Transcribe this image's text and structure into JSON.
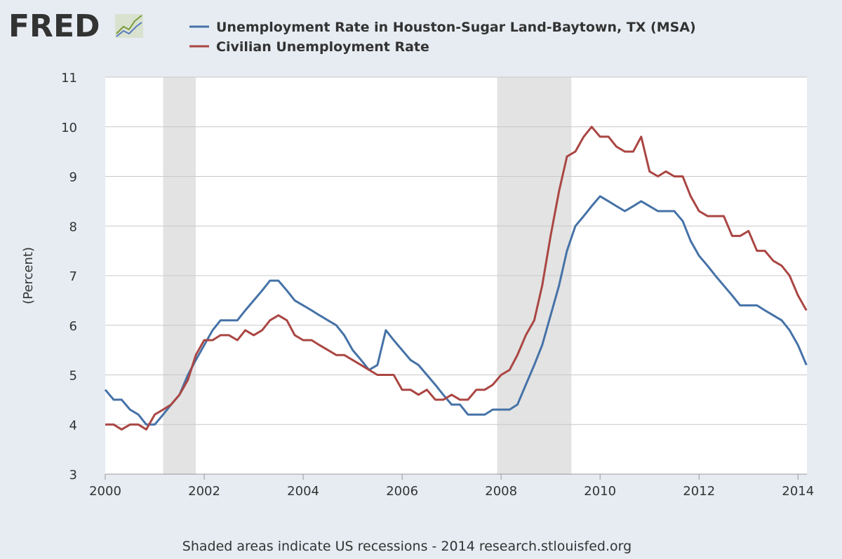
{
  "logo": "FRED",
  "chart_data": {
    "type": "line",
    "y_label": "(Percent)",
    "footer": "Shaded areas indicate US recessions - 2014 research.stlouisfed.org",
    "x": [
      2000,
      2000.17,
      2000.33,
      2000.5,
      2000.67,
      2000.83,
      2001,
      2001.17,
      2001.33,
      2001.5,
      2001.67,
      2001.83,
      2002,
      2002.17,
      2002.33,
      2002.5,
      2002.67,
      2002.83,
      2003,
      2003.17,
      2003.33,
      2003.5,
      2003.67,
      2003.83,
      2004,
      2004.17,
      2004.33,
      2004.5,
      2004.67,
      2004.83,
      2005,
      2005.17,
      2005.33,
      2005.5,
      2005.67,
      2005.83,
      2006,
      2006.17,
      2006.33,
      2006.5,
      2006.67,
      2006.83,
      2007,
      2007.17,
      2007.33,
      2007.5,
      2007.67,
      2007.83,
      2008,
      2008.17,
      2008.33,
      2008.5,
      2008.67,
      2008.83,
      2009,
      2009.17,
      2009.33,
      2009.5,
      2009.67,
      2009.83,
      2010,
      2010.17,
      2010.33,
      2010.5,
      2010.67,
      2010.83,
      2011,
      2011.17,
      2011.33,
      2011.5,
      2011.67,
      2011.83,
      2012,
      2012.17,
      2012.33,
      2012.5,
      2012.67,
      2012.83,
      2013,
      2013.17,
      2013.33,
      2013.5,
      2013.67,
      2013.83,
      2014,
      2014.17
    ],
    "series": [
      {
        "name": "Unemployment Rate in Houston-Sugar Land-Baytown, TX (MSA)",
        "color": "#4572a7",
        "values": [
          4.7,
          4.5,
          4.5,
          4.3,
          4.2,
          4.0,
          4.0,
          4.2,
          4.4,
          4.6,
          5.0,
          5.3,
          5.6,
          5.9,
          6.1,
          6.1,
          6.1,
          6.3,
          6.5,
          6.7,
          6.9,
          6.9,
          6.7,
          6.5,
          6.4,
          6.3,
          6.2,
          6.1,
          6.0,
          5.8,
          5.5,
          5.3,
          5.1,
          5.2,
          5.9,
          5.7,
          5.5,
          5.3,
          5.2,
          5.0,
          4.8,
          4.6,
          4.4,
          4.4,
          4.2,
          4.2,
          4.2,
          4.3,
          4.3,
          4.3,
          4.4,
          4.8,
          5.2,
          5.6,
          6.2,
          6.8,
          7.5,
          8.0,
          8.2,
          8.4,
          8.6,
          8.5,
          8.4,
          8.3,
          8.4,
          8.5,
          8.4,
          8.3,
          8.3,
          8.3,
          8.1,
          7.7,
          7.4,
          7.2,
          7.0,
          6.8,
          6.6,
          6.4,
          6.4,
          6.4,
          6.3,
          6.2,
          6.1,
          5.9,
          5.6,
          5.2
        ]
      },
      {
        "name": "Civilian Unemployment Rate",
        "color": "#aa4643",
        "values": [
          4.0,
          4.0,
          3.9,
          4.0,
          4.0,
          3.9,
          4.2,
          4.3,
          4.4,
          4.6,
          4.9,
          5.4,
          5.7,
          5.7,
          5.8,
          5.8,
          5.7,
          5.9,
          5.8,
          5.9,
          6.1,
          6.2,
          6.1,
          5.8,
          5.7,
          5.7,
          5.6,
          5.5,
          5.4,
          5.4,
          5.3,
          5.2,
          5.1,
          5.0,
          5.0,
          5.0,
          4.7,
          4.7,
          4.6,
          4.7,
          4.5,
          4.5,
          4.6,
          4.5,
          4.5,
          4.7,
          4.7,
          4.8,
          5.0,
          5.1,
          5.4,
          5.8,
          6.1,
          6.8,
          7.8,
          8.7,
          9.4,
          9.5,
          9.8,
          10.0,
          9.8,
          9.8,
          9.6,
          9.5,
          9.5,
          9.8,
          9.1,
          9.0,
          9.1,
          9.0,
          9.0,
          8.6,
          8.3,
          8.2,
          8.2,
          8.2,
          7.8,
          7.8,
          7.9,
          7.5,
          7.5,
          7.3,
          7.2,
          7.0,
          6.6,
          6.3
        ]
      }
    ],
    "recessions": [
      [
        2001.17,
        2001.83
      ],
      [
        2007.92,
        2009.42
      ]
    ],
    "xlim": [
      2000,
      2014.18
    ],
    "xticks": [
      2000,
      2002,
      2004,
      2006,
      2008,
      2010,
      2012,
      2014
    ],
    "ylim": [
      3,
      11
    ],
    "yticks": [
      3,
      4,
      5,
      6,
      7,
      8,
      9,
      10,
      11
    ],
    "grid": true
  }
}
